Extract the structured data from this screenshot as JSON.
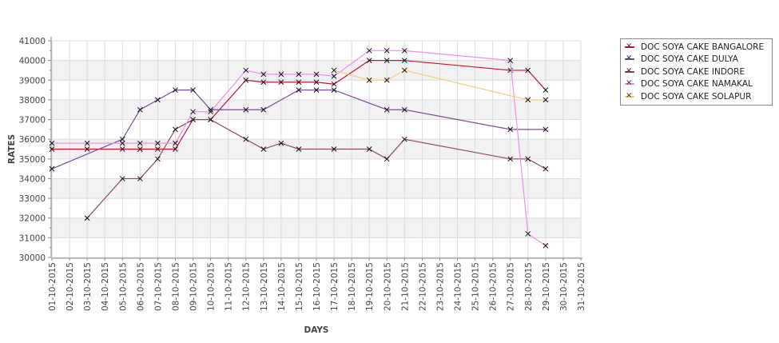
{
  "chart_data": {
    "type": "line",
    "title": "",
    "xlabel": "DAYS",
    "ylabel": "RATES",
    "ylim": [
      30000,
      41000
    ],
    "yticks": [
      30000,
      31000,
      32000,
      33000,
      34000,
      35000,
      36000,
      37000,
      38000,
      39000,
      40000,
      41000
    ],
    "x_tick_labels": [
      "01-10-2015",
      "02-10-2015",
      "03-10-2015",
      "04-10-2015",
      "05-10-2015",
      "06-10-2015",
      "07-10-2015",
      "08-10-2015",
      "09-10-2015",
      "10-10-2015",
      "11-10-2015",
      "12-10-2015",
      "13-10-2015",
      "14-10-2015",
      "15-10-2015",
      "16-10-2015",
      "17-10-2015",
      "18-10-2015",
      "19-10-2015",
      "20-10-2015",
      "21-10-2015",
      "22-10-2015",
      "23-10-2015",
      "24-10-2015",
      "25-10-2015",
      "26-10-2015",
      "27-10-2015",
      "28-10-2015",
      "29-10-2015",
      "30-10-2015",
      "31-10-2015"
    ],
    "legend_position": "right",
    "series": [
      {
        "name": "DOC SOYA CAKE BANGALORE",
        "color": "#cc1133",
        "points": [
          [
            1,
            35500
          ],
          [
            3,
            35500
          ],
          [
            5,
            35500
          ],
          [
            6,
            35500
          ],
          [
            7,
            35500
          ],
          [
            8,
            35500
          ],
          [
            9,
            37000
          ],
          [
            10,
            37000
          ],
          [
            12,
            39000
          ],
          [
            13,
            38900
          ],
          [
            14,
            38900
          ],
          [
            15,
            38900
          ],
          [
            16,
            38900
          ],
          [
            17,
            38800
          ],
          [
            19,
            40000
          ],
          [
            20,
            40000
          ],
          [
            21,
            40000
          ],
          [
            27,
            39500
          ],
          [
            28,
            39500
          ],
          [
            29,
            38500
          ]
        ]
      },
      {
        "name": "DOC SOYA CAKE DULYA",
        "color": "#7a4c9a",
        "points": [
          [
            1,
            34500
          ],
          [
            5,
            36000
          ],
          [
            6,
            37500
          ],
          [
            7,
            38000
          ],
          [
            8,
            38500
          ],
          [
            9,
            38500
          ],
          [
            10,
            37500
          ],
          [
            12,
            37500
          ],
          [
            13,
            37500
          ],
          [
            15,
            38500
          ],
          [
            16,
            38500
          ],
          [
            17,
            38500
          ],
          [
            20,
            37500
          ],
          [
            21,
            37500
          ],
          [
            27,
            36500
          ],
          [
            29,
            36500
          ]
        ]
      },
      {
        "name": "DOC SOYA CAKE INDORE",
        "color": "#8b4c5c",
        "points": [
          [
            3,
            32000
          ],
          [
            5,
            34000
          ],
          [
            6,
            34000
          ],
          [
            7,
            35000
          ],
          [
            8,
            36500
          ],
          [
            9,
            37000
          ],
          [
            10,
            37000
          ],
          [
            12,
            36000
          ],
          [
            13,
            35500
          ],
          [
            14,
            35800
          ],
          [
            15,
            35500
          ],
          [
            17,
            35500
          ],
          [
            19,
            35500
          ],
          [
            20,
            35000
          ],
          [
            21,
            36000
          ],
          [
            27,
            35000
          ],
          [
            28,
            35000
          ],
          [
            29,
            34500
          ]
        ]
      },
      {
        "name": "DOC SOYA CAKE NAMAKAL",
        "color": "#f08cf0",
        "points": [
          [
            1,
            35800
          ],
          [
            3,
            35800
          ],
          [
            5,
            35800
          ],
          [
            6,
            35800
          ],
          [
            7,
            35800
          ],
          [
            8,
            35800
          ],
          [
            9,
            37400
          ],
          [
            10,
            37400
          ],
          [
            12,
            39500
          ],
          [
            13,
            39300
          ],
          [
            14,
            39300
          ],
          [
            15,
            39300
          ],
          [
            16,
            39300
          ],
          [
            17,
            39200
          ],
          [
            19,
            40500
          ],
          [
            20,
            40500
          ],
          [
            21,
            40500
          ],
          [
            27,
            40000
          ],
          [
            28,
            31200
          ],
          [
            29,
            30600
          ]
        ]
      },
      {
        "name": "DOC SOYA CAKE SOLAPUR",
        "color": "#f0d080",
        "points": [
          [
            17,
            39500
          ],
          [
            19,
            39000
          ],
          [
            20,
            39000
          ],
          [
            21,
            39500
          ],
          [
            28,
            38000
          ],
          [
            29,
            38000
          ]
        ]
      }
    ]
  }
}
